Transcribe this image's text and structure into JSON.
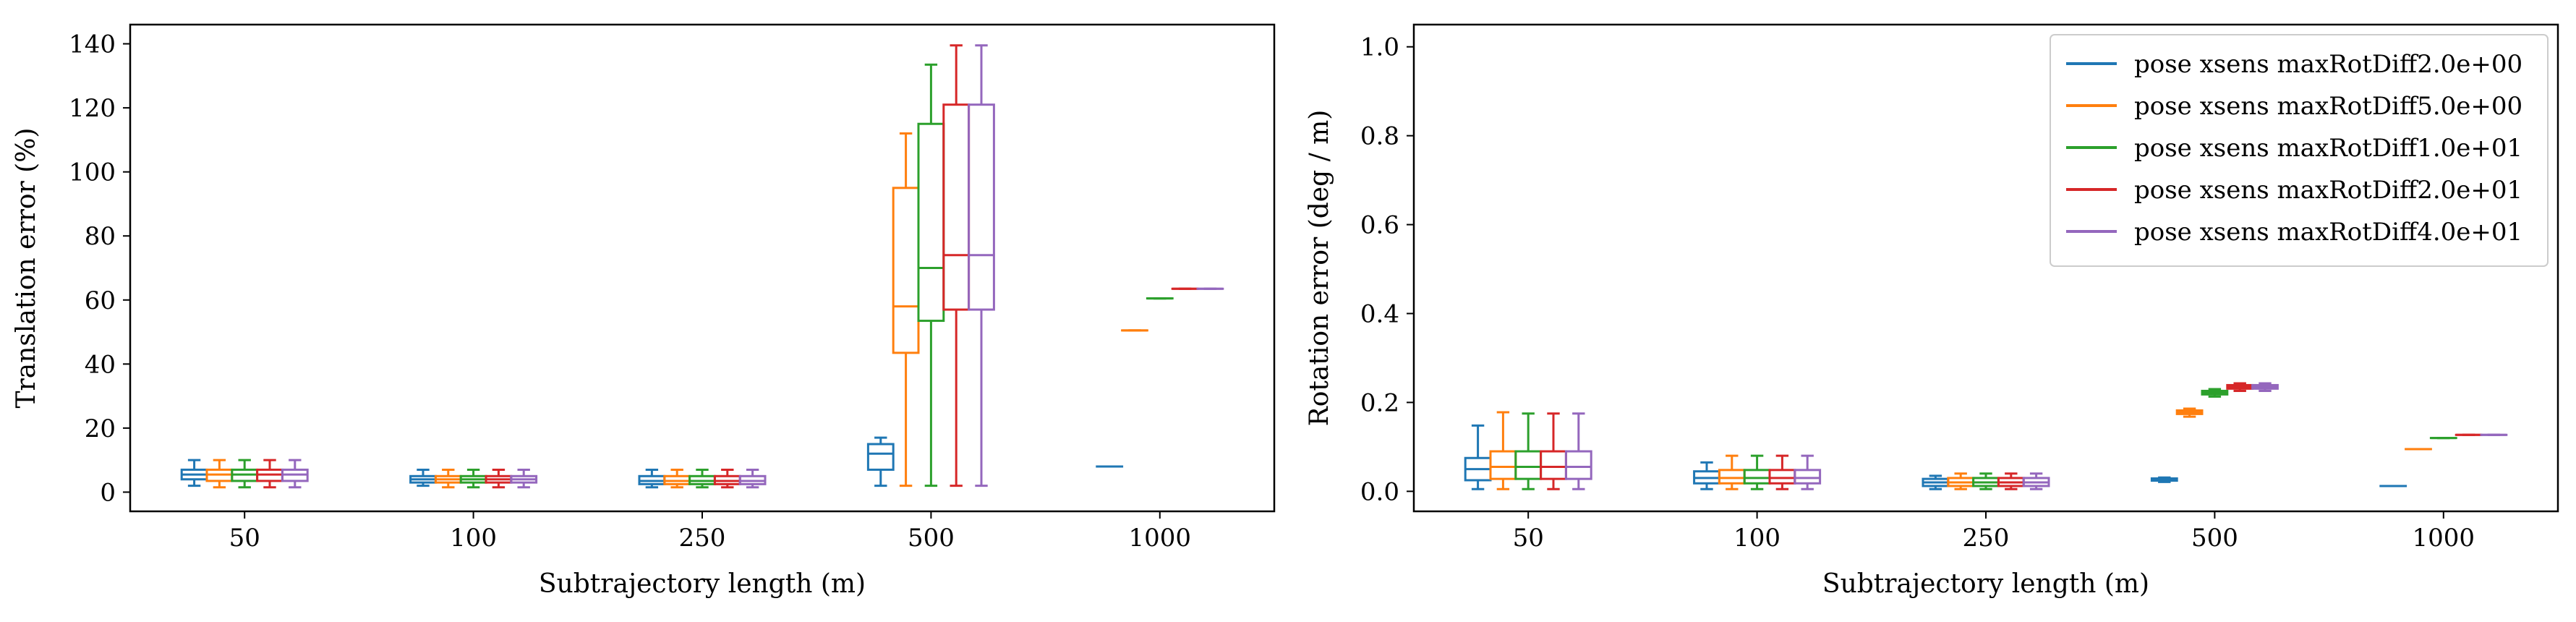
{
  "series_names": [
    "pose xsens maxRotDiff2.0e+00",
    "pose xsens maxRotDiff5.0e+00",
    "pose xsens maxRotDiff1.0e+01",
    "pose xsens maxRotDiff2.0e+01",
    "pose xsens maxRotDiff4.0e+01"
  ],
  "colors": [
    "#1f77b4",
    "#ff7f0e",
    "#2ca02c",
    "#d62728",
    "#9467bd"
  ],
  "chart_data": [
    {
      "type": "box",
      "xlabel": "Subtrajectory length (m)",
      "ylabel": "Translation error (%)",
      "categories": [
        "50",
        "100",
        "250",
        "500",
        "1000"
      ],
      "ylim": [
        -6,
        146
      ],
      "yticks": [
        0,
        20,
        40,
        60,
        80,
        100,
        120,
        140
      ],
      "legend": null,
      "series": [
        {
          "name": "pose xsens maxRotDiff2.0e+00",
          "boxes": [
            {
              "whislo": 2,
              "q1": 4,
              "med": 5.5,
              "q3": 7,
              "whishi": 10
            },
            {
              "whislo": 2,
              "q1": 3,
              "med": 4,
              "q3": 5,
              "whishi": 7
            },
            {
              "whislo": 1.5,
              "q1": 2.5,
              "med": 3.5,
              "q3": 5,
              "whishi": 7
            },
            {
              "whislo": 2,
              "q1": 7,
              "med": 12,
              "q3": 15,
              "whishi": 17
            },
            {
              "whislo": 8,
              "q1": 8,
              "med": 8,
              "q3": 8,
              "whishi": 8
            }
          ]
        },
        {
          "name": "pose xsens maxRotDiff5.0e+00",
          "boxes": [
            {
              "whislo": 1.5,
              "q1": 3.5,
              "med": 5.5,
              "q3": 7,
              "whishi": 10
            },
            {
              "whislo": 1.5,
              "q1": 3,
              "med": 4,
              "q3": 5,
              "whishi": 7
            },
            {
              "whislo": 1.5,
              "q1": 2.5,
              "med": 3.5,
              "q3": 5,
              "whishi": 7
            },
            {
              "whislo": 2,
              "q1": 43.5,
              "med": 58,
              "q3": 95,
              "whishi": 112
            },
            {
              "whislo": 50.5,
              "q1": 50.5,
              "med": 50.5,
              "q3": 50.5,
              "whishi": 50.5
            }
          ]
        },
        {
          "name": "pose xsens maxRotDiff1.0e+01",
          "boxes": [
            {
              "whislo": 1.5,
              "q1": 3.5,
              "med": 5.5,
              "q3": 7,
              "whishi": 10
            },
            {
              "whislo": 1.5,
              "q1": 3,
              "med": 4,
              "q3": 5,
              "whishi": 7
            },
            {
              "whislo": 1.5,
              "q1": 2.5,
              "med": 3.5,
              "q3": 5,
              "whishi": 7
            },
            {
              "whislo": 2,
              "q1": 53.5,
              "med": 70,
              "q3": 115,
              "whishi": 133.5
            },
            {
              "whislo": 60.5,
              "q1": 60.5,
              "med": 60.5,
              "q3": 60.5,
              "whishi": 60.5
            }
          ]
        },
        {
          "name": "pose xsens maxRotDiff2.0e+01",
          "boxes": [
            {
              "whislo": 1.5,
              "q1": 3.5,
              "med": 5.5,
              "q3": 7,
              "whishi": 10
            },
            {
              "whislo": 1.5,
              "q1": 3,
              "med": 4,
              "q3": 5,
              "whishi": 7
            },
            {
              "whislo": 1.5,
              "q1": 2.5,
              "med": 3.5,
              "q3": 5,
              "whishi": 7
            },
            {
              "whislo": 2,
              "q1": 57,
              "med": 74,
              "q3": 121,
              "whishi": 139.5
            },
            {
              "whislo": 63.5,
              "q1": 63.5,
              "med": 63.5,
              "q3": 63.5,
              "whishi": 63.5
            }
          ]
        },
        {
          "name": "pose xsens maxRotDiff4.0e+01",
          "boxes": [
            {
              "whislo": 1.5,
              "q1": 3.5,
              "med": 5.5,
              "q3": 7,
              "whishi": 10
            },
            {
              "whislo": 1.5,
              "q1": 3,
              "med": 4,
              "q3": 5,
              "whishi": 7
            },
            {
              "whislo": 1.5,
              "q1": 2.5,
              "med": 3.5,
              "q3": 5,
              "whishi": 7
            },
            {
              "whislo": 2,
              "q1": 57,
              "med": 74,
              "q3": 121,
              "whishi": 139.5
            },
            {
              "whislo": 63.5,
              "q1": 63.5,
              "med": 63.5,
              "q3": 63.5,
              "whishi": 63.5
            }
          ]
        }
      ]
    },
    {
      "type": "box",
      "xlabel": "Subtrajectory length (m)",
      "ylabel": "Rotation error (deg / m)",
      "categories": [
        "50",
        "100",
        "250",
        "500",
        "1000"
      ],
      "ylim": [
        -0.045,
        1.05
      ],
      "yticks": [
        0.0,
        0.2,
        0.4,
        0.6,
        0.8,
        1.0
      ],
      "legend": "top-right",
      "series": [
        {
          "name": "pose xsens maxRotDiff2.0e+00",
          "boxes": [
            {
              "whislo": 0.005,
              "q1": 0.025,
              "med": 0.05,
              "q3": 0.075,
              "whishi": 0.148
            },
            {
              "whislo": 0.005,
              "q1": 0.018,
              "med": 0.03,
              "q3": 0.045,
              "whishi": 0.065
            },
            {
              "whislo": 0.005,
              "q1": 0.012,
              "med": 0.02,
              "q3": 0.028,
              "whishi": 0.035
            },
            {
              "whislo": 0.021,
              "q1": 0.024,
              "med": 0.026,
              "q3": 0.029,
              "whishi": 0.031
            },
            {
              "whislo": 0.012,
              "q1": 0.012,
              "med": 0.012,
              "q3": 0.012,
              "whishi": 0.012
            }
          ]
        },
        {
          "name": "pose xsens maxRotDiff5.0e+00",
          "boxes": [
            {
              "whislo": 0.005,
              "q1": 0.028,
              "med": 0.055,
              "q3": 0.09,
              "whishi": 0.178
            },
            {
              "whislo": 0.005,
              "q1": 0.018,
              "med": 0.03,
              "q3": 0.048,
              "whishi": 0.08
            },
            {
              "whislo": 0.005,
              "q1": 0.012,
              "med": 0.02,
              "q3": 0.03,
              "whishi": 0.04
            },
            {
              "whislo": 0.168,
              "q1": 0.174,
              "med": 0.178,
              "q3": 0.182,
              "whishi": 0.186
            },
            {
              "whislo": 0.095,
              "q1": 0.095,
              "med": 0.095,
              "q3": 0.095,
              "whishi": 0.095
            }
          ]
        },
        {
          "name": "pose xsens maxRotDiff1.0e+01",
          "boxes": [
            {
              "whislo": 0.005,
              "q1": 0.028,
              "med": 0.055,
              "q3": 0.09,
              "whishi": 0.175
            },
            {
              "whislo": 0.005,
              "q1": 0.018,
              "med": 0.03,
              "q3": 0.048,
              "whishi": 0.08
            },
            {
              "whislo": 0.005,
              "q1": 0.012,
              "med": 0.02,
              "q3": 0.03,
              "whishi": 0.04
            },
            {
              "whislo": 0.213,
              "q1": 0.218,
              "med": 0.222,
              "q3": 0.226,
              "whishi": 0.23
            },
            {
              "whislo": 0.12,
              "q1": 0.12,
              "med": 0.12,
              "q3": 0.12,
              "whishi": 0.12
            }
          ]
        },
        {
          "name": "pose xsens maxRotDiff2.0e+01",
          "boxes": [
            {
              "whislo": 0.005,
              "q1": 0.028,
              "med": 0.055,
              "q3": 0.09,
              "whishi": 0.175
            },
            {
              "whislo": 0.005,
              "q1": 0.018,
              "med": 0.03,
              "q3": 0.048,
              "whishi": 0.08
            },
            {
              "whislo": 0.005,
              "q1": 0.012,
              "med": 0.02,
              "q3": 0.03,
              "whishi": 0.04
            },
            {
              "whislo": 0.226,
              "q1": 0.231,
              "med": 0.235,
              "q3": 0.239,
              "whishi": 0.243
            },
            {
              "whislo": 0.127,
              "q1": 0.127,
              "med": 0.127,
              "q3": 0.127,
              "whishi": 0.127
            }
          ]
        },
        {
          "name": "pose xsens maxRotDiff4.0e+01",
          "boxes": [
            {
              "whislo": 0.005,
              "q1": 0.028,
              "med": 0.055,
              "q3": 0.09,
              "whishi": 0.175
            },
            {
              "whislo": 0.005,
              "q1": 0.018,
              "med": 0.03,
              "q3": 0.048,
              "whishi": 0.08
            },
            {
              "whislo": 0.005,
              "q1": 0.012,
              "med": 0.02,
              "q3": 0.03,
              "whishi": 0.04
            },
            {
              "whislo": 0.226,
              "q1": 0.231,
              "med": 0.235,
              "q3": 0.239,
              "whishi": 0.243
            },
            {
              "whislo": 0.127,
              "q1": 0.127,
              "med": 0.127,
              "q3": 0.127,
              "whishi": 0.127
            }
          ]
        }
      ]
    }
  ]
}
